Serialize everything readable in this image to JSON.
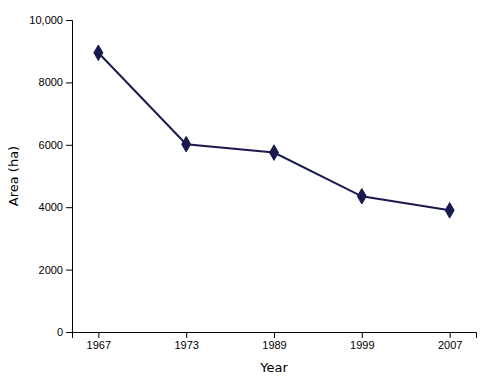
{
  "chart_data": {
    "type": "line",
    "xlabel": "Year",
    "ylabel": "Area (ha)",
    "categories": [
      "1967",
      "1973",
      "1989",
      "1999",
      "2007"
    ],
    "values": [
      8950,
      6020,
      5750,
      4350,
      3900
    ],
    "color": "#1a1a4e",
    "marker": "diamond",
    "ylim": [
      0,
      10000
    ],
    "yticks": [
      0,
      2000,
      4000,
      6000,
      8000,
      {
        "value": 10000,
        "label": "10,000"
      }
    ],
    "grid": false
  }
}
